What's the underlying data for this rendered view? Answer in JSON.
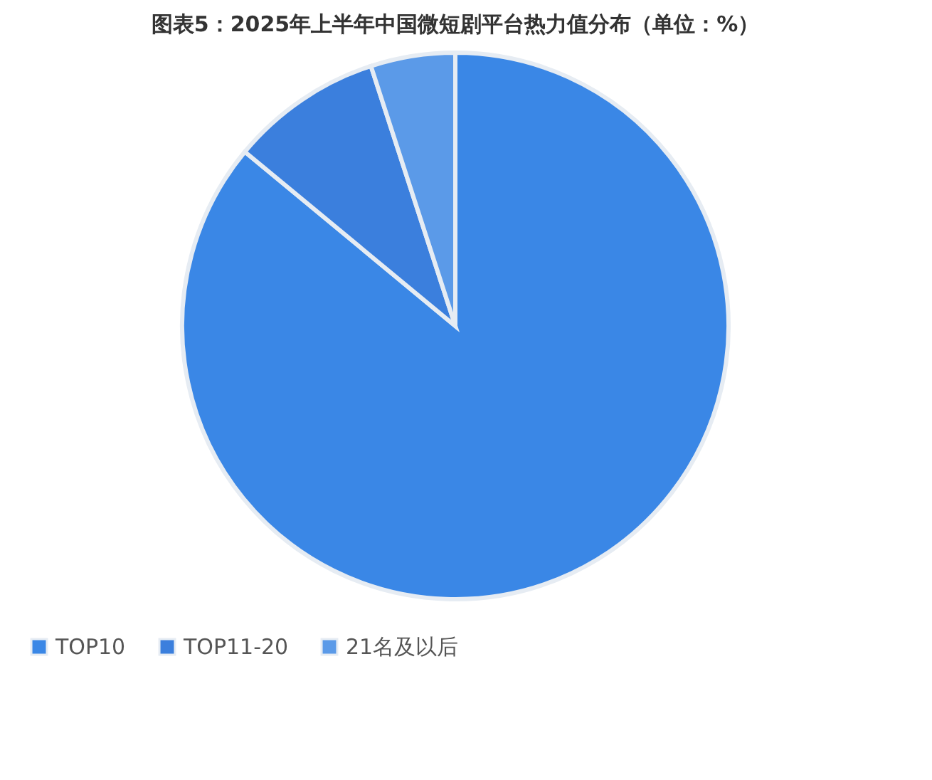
{
  "chart_data": {
    "type": "pie",
    "title": "图表5：2025年上半年中国微短剧平台热力值分布（单位：%）",
    "categories": [
      "TOP10",
      "TOP11-20",
      "21名及以后"
    ],
    "values": [
      86,
      9,
      5
    ],
    "colors": [
      "#3a87e6",
      "#3b7fdd",
      "#5b9ae8"
    ],
    "legend": "bottom"
  }
}
